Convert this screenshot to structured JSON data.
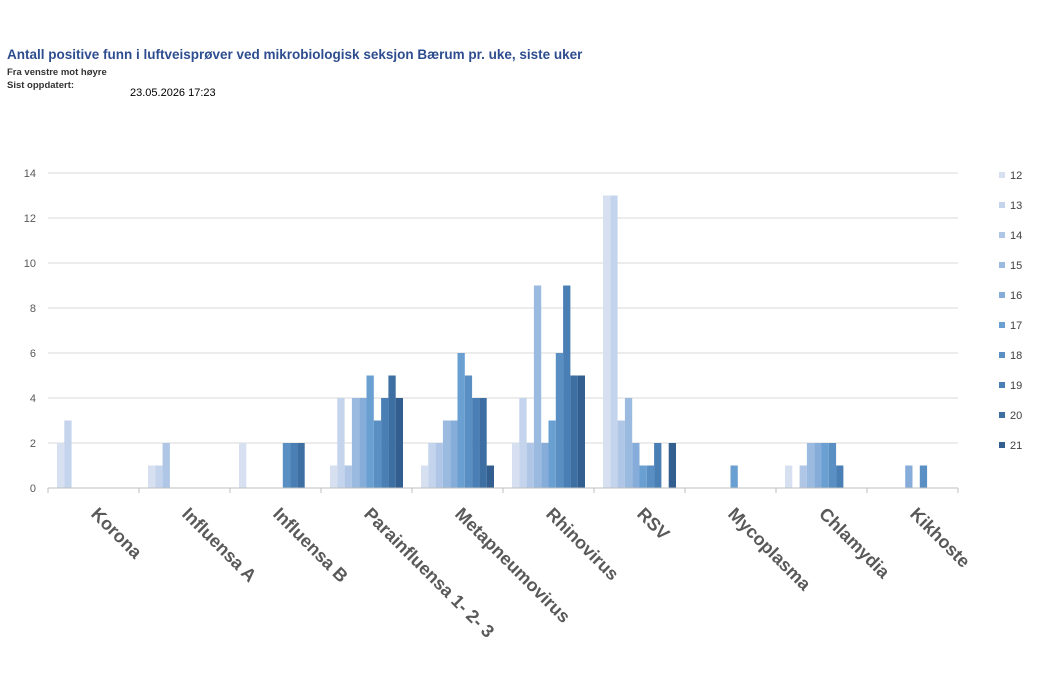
{
  "header": {
    "title": "Antall positive funn i luftveisprøver ved mikrobiologisk seksjon Bærum pr. uke, siste uker",
    "subtitle": "Fra venstre mot høyre",
    "updated_label": "Sist oppdatert:",
    "updated_value": "23.05.2026 17:23"
  },
  "chart_data": {
    "type": "bar",
    "categories": [
      "Korona",
      "Influensa A",
      "Influensa B",
      "Parainfluensa 1- 2- 3",
      "Metapneumovirus",
      "Rhinovirus",
      "RSV",
      "Mycoplasma",
      "Chlamydia",
      "Kikhoste"
    ],
    "ylim": [
      0,
      14
    ],
    "yticks": [
      0,
      2,
      4,
      6,
      8,
      10,
      12,
      14
    ],
    "grid": true,
    "legend_position": "right",
    "series": [
      {
        "name": "12",
        "color": "#D6E0F0",
        "values": [
          2,
          1,
          2,
          1,
          1,
          2,
          13,
          0,
          1,
          0
        ]
      },
      {
        "name": "13",
        "color": "#C3D4EC",
        "values": [
          3,
          1,
          0,
          4,
          2,
          4,
          13,
          0,
          0,
          0
        ]
      },
      {
        "name": "14",
        "color": "#AFC6E6",
        "values": [
          0,
          2,
          0,
          1,
          2,
          2,
          3,
          0,
          1,
          0
        ]
      },
      {
        "name": "15",
        "color": "#9ABADF",
        "values": [
          0,
          0,
          0,
          4,
          3,
          9,
          4,
          0,
          2,
          0
        ]
      },
      {
        "name": "16",
        "color": "#86ADD9",
        "values": [
          0,
          0,
          0,
          4,
          3,
          2,
          2,
          0,
          2,
          1
        ]
      },
      {
        "name": "17",
        "color": "#6A9FD2",
        "values": [
          0,
          0,
          0,
          5,
          6,
          3,
          1,
          1,
          2,
          0
        ]
      },
      {
        "name": "18",
        "color": "#5A8FC4",
        "values": [
          0,
          0,
          2,
          3,
          5,
          6,
          1,
          0,
          2,
          1
        ]
      },
      {
        "name": "19",
        "color": "#4A7FB5",
        "values": [
          0,
          0,
          2,
          4,
          4,
          9,
          2,
          0,
          1,
          0
        ]
      },
      {
        "name": "20",
        "color": "#3D6FA3",
        "values": [
          0,
          0,
          2,
          5,
          4,
          5,
          0,
          0,
          0,
          0
        ]
      },
      {
        "name": "21",
        "color": "#335F90",
        "values": [
          0,
          0,
          0,
          4,
          1,
          5,
          2,
          0,
          0,
          0
        ]
      }
    ]
  }
}
